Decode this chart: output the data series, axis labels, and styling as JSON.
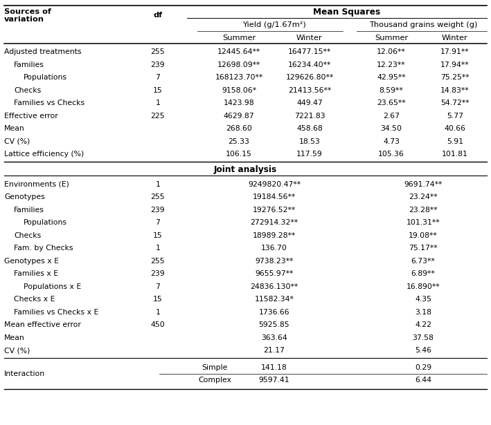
{
  "title": "Mean Squares",
  "yield_header": "Yield (g/1.67m²)",
  "tgw_header": "Thousand grains weight (g)",
  "summer": "Summer",
  "winter": "Winter",
  "joint_label": "Joint analysis",
  "top_rows": [
    {
      "source": "Adjusted treatments",
      "indent": 0,
      "df": "255",
      "ys": "12445.64**",
      "yw": "16477.15**",
      "ts": "12.06**",
      "tw": "17.91**"
    },
    {
      "source": "Families",
      "indent": 1,
      "df": "239",
      "ys": "12698.09**",
      "yw": "16234.40**",
      "ts": "12.23**",
      "tw": "17.94**"
    },
    {
      "source": "Populations",
      "indent": 2,
      "df": "7",
      "ys": "168123.70**",
      "yw": "129626.80**",
      "ts": "42.95**",
      "tw": "75.25**"
    },
    {
      "source": "Checks",
      "indent": 1,
      "df": "15",
      "ys": "9158.06*",
      "yw": "21413.56**",
      "ts": "8.59**",
      "tw": "14.83**"
    },
    {
      "source": "Families vs Checks",
      "indent": 1,
      "df": "1",
      "ys": "1423.98",
      "yw": "449.47",
      "ts": "23.65**",
      "tw": "54.72**"
    },
    {
      "source": "Effective error",
      "indent": 0,
      "df": "225",
      "ys": "4629.87",
      "yw": "7221.83",
      "ts": "2.67",
      "tw": "5.77"
    },
    {
      "source": "Mean",
      "indent": 0,
      "df": "",
      "ys": "268.60",
      "yw": "458.68",
      "ts": "34.50",
      "tw": "40.66"
    },
    {
      "source": "CV (%)",
      "indent": 0,
      "df": "",
      "ys": "25.33",
      "yw": "18.53",
      "ts": "4.73",
      "tw": "5.91"
    },
    {
      "source": "Lattice efficiency (%)",
      "indent": 0,
      "df": "",
      "ys": "106.15",
      "yw": "117.59",
      "ts": "105.36",
      "tw": "101.81"
    }
  ],
  "joint_rows": [
    {
      "source": "Environments (E)",
      "indent": 0,
      "df": "1",
      "ys": "9249820.47**",
      "ts": "9691.74**"
    },
    {
      "source": "Genotypes",
      "indent": 0,
      "df": "255",
      "ys": "19184.56**",
      "ts": "23.24**"
    },
    {
      "source": "Families",
      "indent": 1,
      "df": "239",
      "ys": "19276.52**",
      "ts": "23.28**"
    },
    {
      "source": "Populations",
      "indent": 2,
      "df": "7",
      "ys": "272914.32**",
      "ts": "101.31**"
    },
    {
      "source": "Checks",
      "indent": 1,
      "df": "15",
      "ys": "18989.28**",
      "ts": "19.08**"
    },
    {
      "source": "Fam. by Checks",
      "indent": 1,
      "df": "1",
      "ys": "136.70",
      "ts": "75.17**"
    },
    {
      "source": "Genotypes x E",
      "indent": 0,
      "df": "255",
      "ys": "9738.23**",
      "ts": "6.73**"
    },
    {
      "source": "Families x E",
      "indent": 1,
      "df": "239",
      "ys": "9655.97**",
      "ts": "6.89**"
    },
    {
      "source": "Populations x E",
      "indent": 2,
      "df": "7",
      "ys": "24836.130**",
      "ts": "16.890**"
    },
    {
      "source": "Checks x E",
      "indent": 1,
      "df": "15",
      "ys": "11582.34*",
      "ts": "4.35"
    },
    {
      "source": "Families vs Checks x E",
      "indent": 1,
      "df": "1",
      "ys": "1736.66",
      "ts": "3.18"
    },
    {
      "source": "Mean effective error",
      "indent": 0,
      "df": "450",
      "ys": "5925.85",
      "ts": "4.22"
    },
    {
      "source": "Mean",
      "indent": 0,
      "df": "",
      "ys": "363.64",
      "ts": "37.58"
    },
    {
      "source": "CV (%)",
      "indent": 0,
      "df": "",
      "ys": "21.17",
      "ts": "5.46"
    }
  ],
  "interaction_rows": [
    {
      "label": "Simple",
      "ys": "141.18",
      "ts": "0.29"
    },
    {
      "label": "Complex",
      "ys": "9597.41",
      "ts": "6.44"
    }
  ],
  "bg_color": "#ffffff",
  "text_color": "#000000",
  "font_size": 7.8,
  "header_font_size": 8.2
}
